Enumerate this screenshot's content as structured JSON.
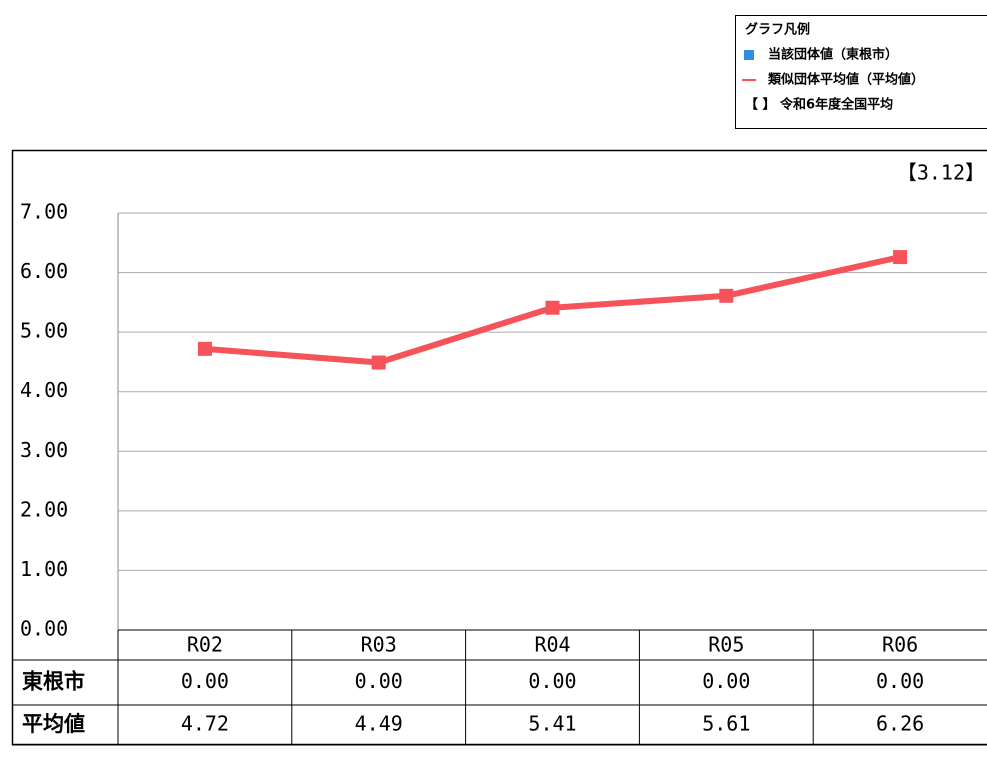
{
  "chart_data": {
    "type": "line",
    "legend_title": "グラフ凡例",
    "legend": [
      "当該団体値（東根市）",
      "類似団体平均値（平均値）",
      "【 】 令和6年度全国平均"
    ],
    "annotation": "【3.12】",
    "categories": [
      "R02",
      "R03",
      "R04",
      "R05",
      "R06"
    ],
    "series": [
      {
        "name": "東根市",
        "color": "#2e8fe0",
        "values": [
          0,
          0,
          0,
          0,
          0
        ],
        "value_labels": [
          "0.00",
          "0.00",
          "0.00",
          "0.00",
          "0.00"
        ]
      },
      {
        "name": "平均値",
        "color": "#f5525a",
        "values": [
          4.72,
          4.49,
          5.41,
          5.61,
          6.26
        ]
      }
    ],
    "ylim": [
      0,
      7
    ],
    "yticks": [
      {
        "value": 0,
        "label": "0.00"
      },
      {
        "value": 1,
        "label": "1.00"
      },
      {
        "value": 2,
        "label": "2.00"
      },
      {
        "value": 3,
        "label": "3.00"
      },
      {
        "value": 4,
        "label": "4.00"
      },
      {
        "value": 5,
        "label": "5.00"
      },
      {
        "value": 6,
        "label": "6.00"
      },
      {
        "value": 7,
        "label": "7.00"
      }
    ],
    "grid": true
  }
}
